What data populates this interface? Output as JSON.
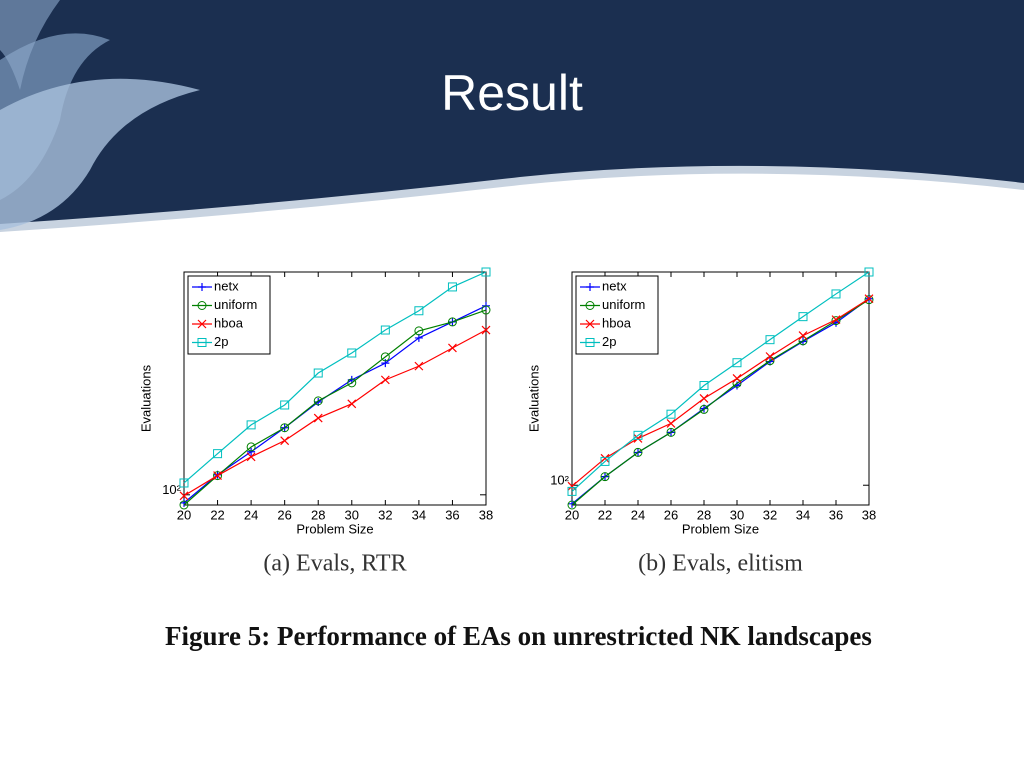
{
  "title": "Result",
  "figure_caption": "Figure 5: Performance of EAs on unrestricted NK landscapes",
  "chart_data": [
    {
      "type": "line",
      "caption": "(a) Evals, RTR",
      "x_label": "Problem Size",
      "y_label": "Evaluations",
      "x": [
        20,
        22,
        24,
        26,
        28,
        30,
        32,
        34,
        36,
        38
      ],
      "xlim": [
        20,
        38
      ],
      "xticks": [
        20,
        22,
        24,
        26,
        28,
        30,
        32,
        34,
        36,
        38
      ],
      "ylim": [
        90,
        1000
      ],
      "yticks": [
        {
          "value": 100,
          "label": "10²"
        }
      ],
      "log_y": true,
      "legend": "upper left",
      "series": [
        {
          "name": "netx",
          "color": "#0000ff",
          "marker": "plus",
          "values": [
            92,
            123,
            156,
            200,
            261,
            328,
            390,
            506,
            597,
            705
          ]
        },
        {
          "name": "uniform",
          "color": "#008000",
          "marker": "circle",
          "values": [
            90,
            122,
            164,
            200,
            264,
            318,
            416,
            544,
            597,
            675
          ]
        },
        {
          "name": "hboa",
          "color": "#ff0000",
          "marker": "x",
          "values": [
            99,
            122,
            148,
            175,
            221,
            256,
            328,
            378,
            456,
            549
          ]
        },
        {
          "name": "2p",
          "color": "#00bfbf",
          "marker": "square",
          "values": [
            113,
            153,
            206,
            253,
            352,
            433,
            549,
            670,
            857,
            1000
          ]
        }
      ]
    },
    {
      "type": "line",
      "caption": "(b) Evals, elitism",
      "x_label": "Problem Size",
      "y_label": "Evaluations",
      "x": [
        20,
        22,
        24,
        26,
        28,
        30,
        32,
        34,
        36,
        38
      ],
      "xlim": [
        20,
        38
      ],
      "xticks": [
        20,
        22,
        24,
        26,
        28,
        30,
        32,
        34,
        36,
        38
      ],
      "ylim": [
        82,
        850
      ],
      "yticks": [
        {
          "value": 100,
          "label": "10²"
        }
      ],
      "log_y": true,
      "legend": "upper left",
      "series": [
        {
          "name": "netx",
          "color": "#0000ff",
          "marker": "plus",
          "values": [
            83,
            109,
            139,
            170,
            216,
            272,
            346,
            423,
            511,
            650
          ]
        },
        {
          "name": "uniform",
          "color": "#008000",
          "marker": "circle",
          "values": [
            82,
            109,
            139,
            170,
            214,
            278,
            349,
            426,
            522,
            644
          ]
        },
        {
          "name": "hboa",
          "color": "#ff0000",
          "marker": "x",
          "values": [
            99,
            131,
            160,
            186,
            239,
            292,
            364,
            449,
            527,
            650
          ]
        },
        {
          "name": "2p",
          "color": "#00bfbf",
          "marker": "square",
          "values": [
            94,
            127,
            165,
            204,
            272,
            342,
            431,
            543,
            682,
            850
          ]
        }
      ]
    }
  ]
}
